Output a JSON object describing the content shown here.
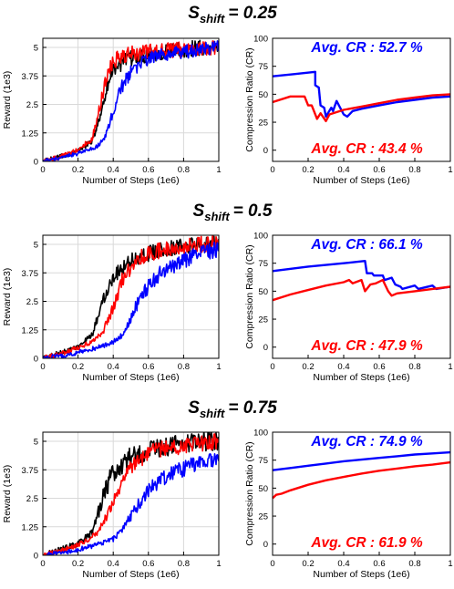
{
  "colors": {
    "black": "#000000",
    "red": "#ff0000",
    "blue": "#0000ff"
  },
  "chart_data": [
    {
      "title_main": "S",
      "title_sub": "shift",
      "title_value": "= 0.25",
      "reward": {
        "type": "line",
        "xlabel": "Number of Steps (1e6)",
        "ylabel": "Reward (1e3)",
        "xlim": [
          0,
          1
        ],
        "ylim": [
          0,
          5.4
        ],
        "xticks": [
          "0",
          "0.2",
          "0.4",
          "0.6",
          "0.8",
          "1"
        ],
        "yticks": [
          "0",
          "1.25",
          "2.5",
          "3.75",
          "5"
        ],
        "grid": true,
        "series": [
          {
            "color": "black",
            "noise": 0.35,
            "x": [
              0,
              0.1,
              0.2,
              0.28,
              0.32,
              0.36,
              0.4,
              0.45,
              0.5,
              0.6,
              0.7,
              0.8,
              0.9,
              1.0
            ],
            "y": [
              0,
              0.2,
              0.45,
              0.9,
              1.8,
              3.2,
              4.1,
              4.3,
              4.5,
              4.7,
              4.8,
              4.9,
              5.0,
              5.0
            ]
          },
          {
            "color": "red",
            "noise": 0.35,
            "x": [
              0,
              0.1,
              0.2,
              0.28,
              0.32,
              0.36,
              0.4,
              0.45,
              0.5,
              0.6,
              0.7,
              0.8,
              0.9,
              1.0
            ],
            "y": [
              0,
              0.2,
              0.5,
              1.0,
              2.3,
              3.6,
              4.4,
              4.6,
              4.7,
              4.8,
              4.9,
              4.9,
              5.0,
              5.0
            ]
          },
          {
            "color": "blue",
            "noise": 0.3,
            "x": [
              0,
              0.1,
              0.2,
              0.3,
              0.35,
              0.4,
              0.45,
              0.5,
              0.55,
              0.6,
              0.7,
              0.8,
              0.9,
              1.0
            ],
            "y": [
              0,
              0.15,
              0.35,
              0.6,
              1.0,
              2.2,
              3.3,
              3.9,
              4.3,
              4.5,
              4.7,
              4.8,
              4.9,
              5.0
            ]
          }
        ]
      },
      "compression": {
        "type": "line",
        "xlabel": "Number of Steps (1e6)",
        "ylabel": "Compression Ratio (CR)",
        "xlim": [
          0,
          1
        ],
        "ylim": [
          -10,
          100
        ],
        "xticks": [
          "0",
          "0.2",
          "0.4",
          "0.6",
          "0.8",
          "1"
        ],
        "yticks": [
          "0",
          "25",
          "50",
          "75",
          "100"
        ],
        "annotations": [
          {
            "text": "Avg. CR : 52.7 %",
            "color": "blue",
            "position": "top"
          },
          {
            "text": "Avg. CR : 43.4 %",
            "color": "red",
            "position": "bottom"
          }
        ],
        "series": [
          {
            "color": "blue",
            "x": [
              0,
              0.12,
              0.24,
              0.24,
              0.26,
              0.27,
              0.29,
              0.3,
              0.33,
              0.34,
              0.36,
              0.4,
              0.42,
              0.45,
              0.5,
              0.6,
              0.7,
              0.8,
              0.9,
              1.0
            ],
            "y": [
              66,
              68,
              70,
              58,
              56,
              40,
              38,
              30,
              38,
              35,
              44,
              32,
              30,
              35,
              37,
              40,
              43,
              45,
              47,
              48
            ]
          },
          {
            "color": "red",
            "x": [
              0,
              0.1,
              0.18,
              0.2,
              0.22,
              0.25,
              0.27,
              0.3,
              0.32,
              0.4,
              0.5,
              0.6,
              0.7,
              0.8,
              0.9,
              1.0
            ],
            "y": [
              43,
              48,
              48,
              40,
              40,
              28,
              33,
              26,
              32,
              36,
              39,
              42,
              45,
              47,
              49,
              50
            ]
          }
        ]
      }
    },
    {
      "title_main": "S",
      "title_sub": "shift",
      "title_value": "= 0.5",
      "reward": {
        "type": "line",
        "xlabel": "Number of Steps (1e6)",
        "ylabel": "Reward (1e3)",
        "xlim": [
          0,
          1
        ],
        "ylim": [
          0,
          5.4
        ],
        "xticks": [
          "0",
          "0.2",
          "0.4",
          "0.6",
          "0.8",
          "1"
        ],
        "yticks": [
          "0",
          "1.25",
          "2.5",
          "3.75",
          "5"
        ],
        "grid": true,
        "series": [
          {
            "color": "black",
            "noise": 0.35,
            "x": [
              0,
              0.1,
              0.2,
              0.28,
              0.32,
              0.36,
              0.4,
              0.45,
              0.5,
              0.6,
              0.7,
              0.8,
              0.9,
              1.0
            ],
            "y": [
              0,
              0.25,
              0.5,
              1.0,
              2.0,
              3.0,
              3.6,
              4.0,
              4.3,
              4.6,
              4.8,
              4.9,
              5.0,
              5.1
            ]
          },
          {
            "color": "red",
            "noise": 0.35,
            "x": [
              0,
              0.1,
              0.2,
              0.3,
              0.35,
              0.4,
              0.45,
              0.5,
              0.55,
              0.6,
              0.7,
              0.8,
              0.9,
              1.0
            ],
            "y": [
              0,
              0.2,
              0.45,
              0.8,
              1.3,
              2.2,
              3.4,
              4.0,
              4.4,
              4.6,
              4.8,
              4.9,
              5.0,
              5.1
            ]
          },
          {
            "color": "blue",
            "noise": 0.35,
            "x": [
              0,
              0.1,
              0.2,
              0.3,
              0.4,
              0.45,
              0.5,
              0.55,
              0.6,
              0.65,
              0.7,
              0.8,
              0.9,
              1.0
            ],
            "y": [
              0,
              0.1,
              0.25,
              0.45,
              0.7,
              1.0,
              1.8,
              2.6,
              3.2,
              3.6,
              3.9,
              4.3,
              4.6,
              4.8
            ]
          }
        ]
      },
      "compression": {
        "type": "line",
        "xlabel": "Number of Steps (1e6)",
        "ylabel": "Compression Ratio (CR)",
        "xlim": [
          0,
          1
        ],
        "ylim": [
          -10,
          100
        ],
        "xticks": [
          "0",
          "0.2",
          "0.4",
          "0.6",
          "0.8",
          "1"
        ],
        "yticks": [
          "0",
          "25",
          "50",
          "75",
          "100"
        ],
        "annotations": [
          {
            "text": "Avg. CR : 66.1 %",
            "color": "blue",
            "position": "top"
          },
          {
            "text": "Avg. CR : 47.9 %",
            "color": "red",
            "position": "bottom"
          }
        ],
        "series": [
          {
            "color": "blue",
            "x": [
              0,
              0.2,
              0.4,
              0.52,
              0.53,
              0.56,
              0.57,
              0.62,
              0.63,
              0.67,
              0.69,
              0.72,
              0.73,
              0.8,
              0.82,
              0.9,
              0.92,
              1.0
            ],
            "y": [
              68,
              72,
              75,
              77,
              66,
              66,
              64,
              64,
              60,
              62,
              56,
              54,
              52,
              55,
              52,
              55,
              52,
              54
            ]
          },
          {
            "color": "red",
            "x": [
              0,
              0.1,
              0.2,
              0.3,
              0.4,
              0.43,
              0.45,
              0.5,
              0.52,
              0.55,
              0.58,
              0.62,
              0.65,
              0.67,
              0.7,
              0.8,
              0.9,
              1.0
            ],
            "y": [
              42,
              47,
              51,
              55,
              58,
              60,
              57,
              60,
              50,
              56,
              57,
              60,
              50,
              46,
              48,
              50,
              52,
              54
            ]
          }
        ]
      }
    },
    {
      "title_main": "S",
      "title_sub": "shift",
      "title_value": "= 0.75",
      "reward": {
        "type": "line",
        "xlabel": "Number of Steps (1e6)",
        "ylabel": "Reward (1e3)",
        "xlim": [
          0,
          1
        ],
        "ylim": [
          0,
          5.4
        ],
        "xticks": [
          "0",
          "0.2",
          "0.4",
          "0.6",
          "0.8",
          "1"
        ],
        "yticks": [
          "0",
          "1.25",
          "2.5",
          "3.75",
          "5"
        ],
        "grid": true,
        "series": [
          {
            "color": "black",
            "noise": 0.45,
            "x": [
              0,
              0.1,
              0.2,
              0.28,
              0.32,
              0.36,
              0.4,
              0.45,
              0.5,
              0.6,
              0.7,
              0.8,
              0.9,
              1.0
            ],
            "y": [
              0,
              0.25,
              0.5,
              1.0,
              2.0,
              3.0,
              3.6,
              4.0,
              4.3,
              4.6,
              4.8,
              4.9,
              5.0,
              5.0
            ]
          },
          {
            "color": "red",
            "noise": 0.35,
            "x": [
              0,
              0.1,
              0.2,
              0.3,
              0.35,
              0.4,
              0.45,
              0.5,
              0.55,
              0.6,
              0.7,
              0.8,
              0.9,
              1.0
            ],
            "y": [
              0,
              0.2,
              0.45,
              0.9,
              1.5,
              2.3,
              3.2,
              3.8,
              4.2,
              4.5,
              4.7,
              4.8,
              4.9,
              5.0
            ]
          },
          {
            "color": "blue",
            "noise": 0.35,
            "x": [
              0,
              0.1,
              0.2,
              0.3,
              0.4,
              0.45,
              0.5,
              0.55,
              0.6,
              0.65,
              0.7,
              0.8,
              0.9,
              1.0
            ],
            "y": [
              0,
              0.1,
              0.25,
              0.45,
              0.7,
              1.1,
              1.7,
              2.3,
              2.8,
              3.2,
              3.5,
              3.8,
              4.1,
              4.2
            ]
          }
        ]
      },
      "compression": {
        "type": "line",
        "xlabel": "Number of Steps (1e6)",
        "ylabel": "Compression Ratio (CR)",
        "xlim": [
          0,
          1
        ],
        "ylim": [
          -10,
          100
        ],
        "xticks": [
          "0",
          "0.2",
          "0.4",
          "0.6",
          "0.8",
          "1"
        ],
        "yticks": [
          "0",
          "25",
          "50",
          "75",
          "100"
        ],
        "annotations": [
          {
            "text": "Avg. CR : 74.9 %",
            "color": "blue",
            "position": "top"
          },
          {
            "text": "Avg. CR : 61.9 %",
            "color": "red",
            "position": "bottom"
          }
        ],
        "series": [
          {
            "color": "blue",
            "x": [
              0,
              0.1,
              0.2,
              0.3,
              0.4,
              0.5,
              0.6,
              0.7,
              0.8,
              0.9,
              1.0
            ],
            "y": [
              66,
              68,
              70,
              72,
              74,
              75.5,
              77,
              78.5,
              80,
              81,
              82
            ]
          },
          {
            "color": "red",
            "x": [
              0,
              0.02,
              0.05,
              0.1,
              0.2,
              0.3,
              0.4,
              0.5,
              0.6,
              0.7,
              0.8,
              0.9,
              1.0
            ],
            "y": [
              41,
              44,
              45,
              48,
              53,
              57,
              60,
              63,
              65.5,
              67.5,
              69.5,
              71,
              73
            ]
          }
        ]
      }
    }
  ]
}
